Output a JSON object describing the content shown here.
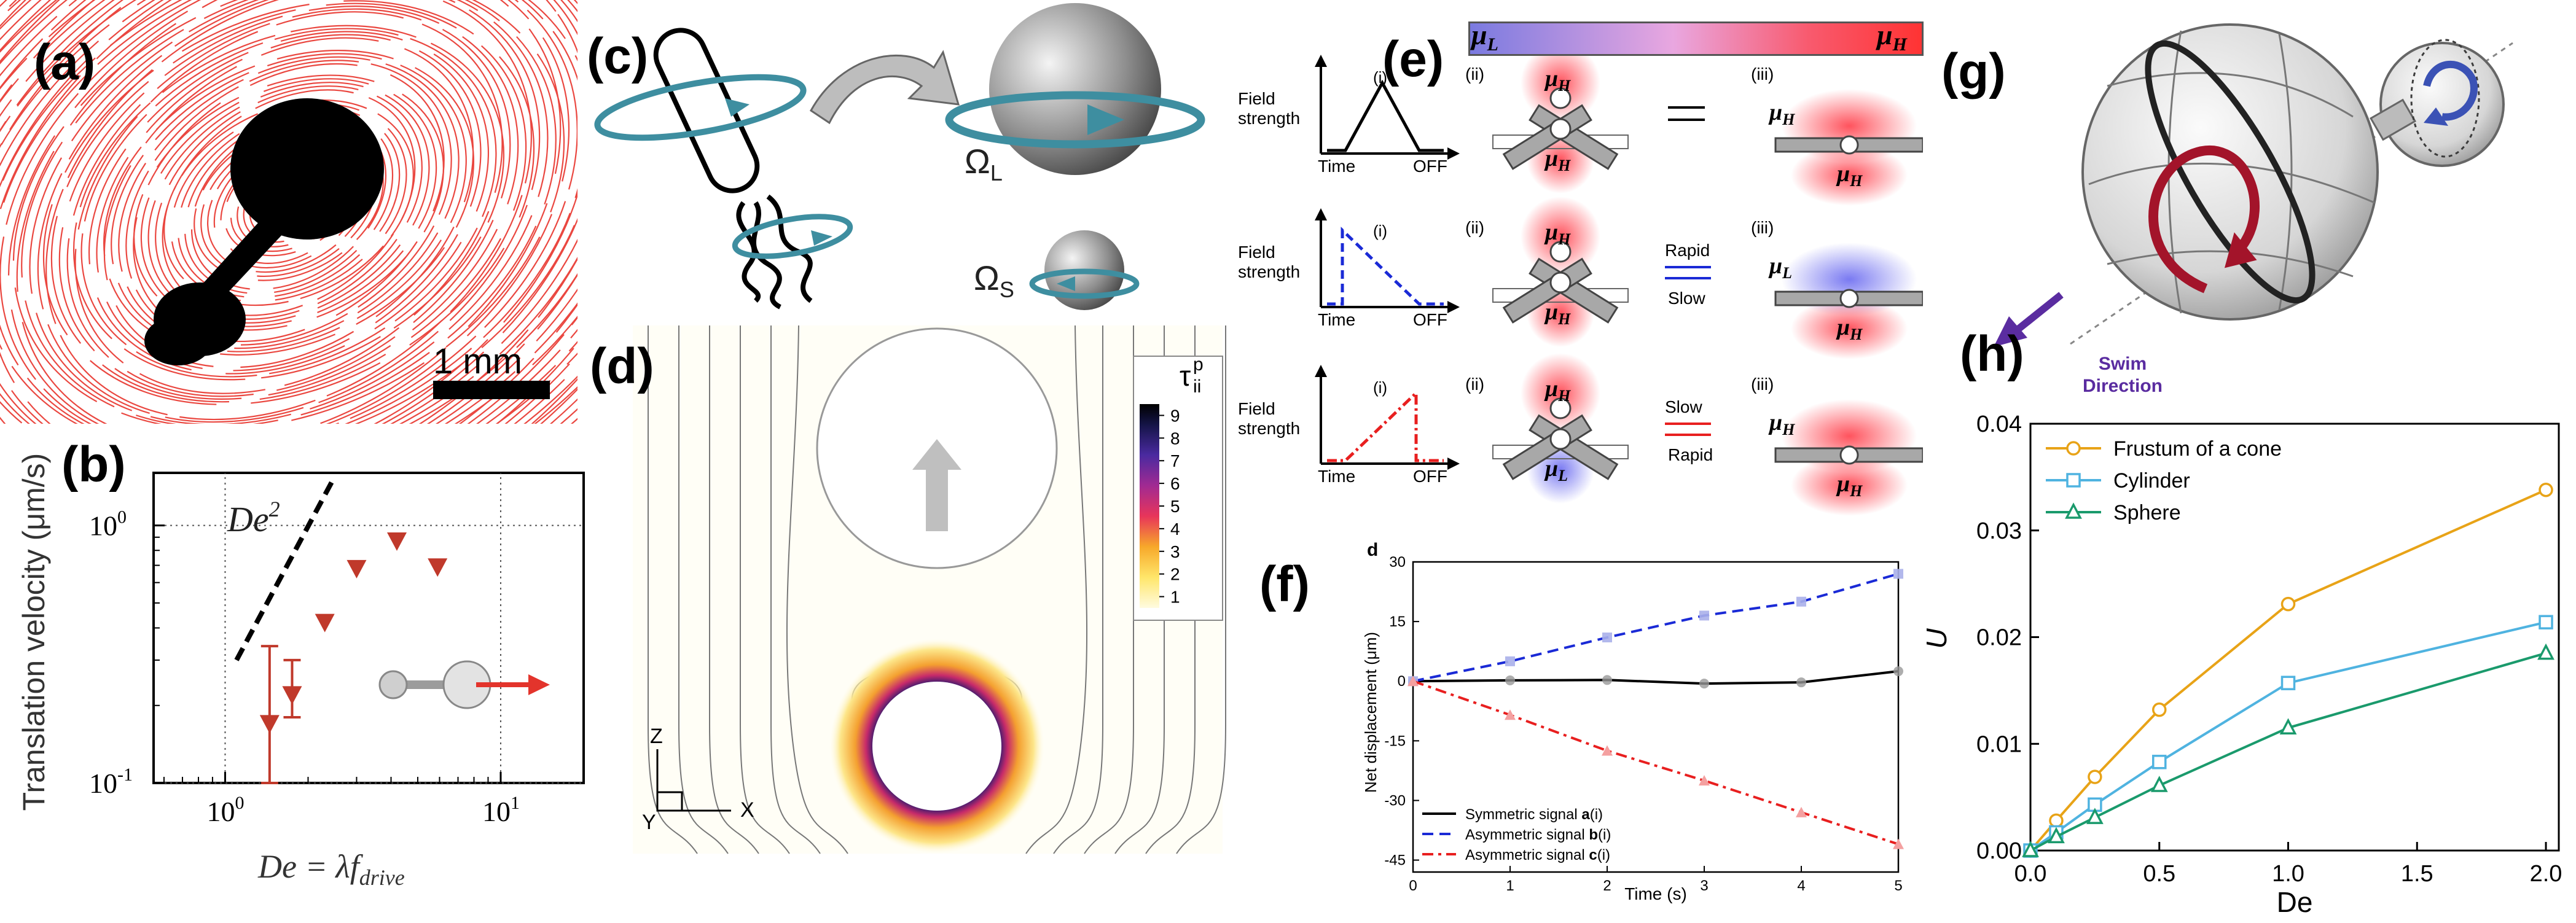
{
  "figure": {
    "panel_labels": [
      "(a)",
      "(b)",
      "(c)",
      "(d)",
      "(e)",
      "(f)",
      "(g)",
      "(h)"
    ]
  },
  "panel_a": {
    "scalebar_label": "1 mm",
    "colors": {
      "streak": "#e8342c",
      "body": "#000000"
    }
  },
  "panel_b": {
    "ylabel": "Translation velocity (μm/s)",
    "xlabel": "De = λ f_drive",
    "xlabel_parts": {
      "main": "De = λf",
      "sub": "drive"
    },
    "slope_label": "De²",
    "xtick_labels": [
      {
        "base": "10",
        "exp": "0"
      },
      {
        "base": "10",
        "exp": "1"
      }
    ],
    "ytick_labels": [
      {
        "base": "10",
        "exp": "-1"
      },
      {
        "base": "10",
        "exp": "0"
      }
    ],
    "chart_data": {
      "type": "scatter",
      "xlabel": "De = λ f_drive",
      "ylabel": "Translation velocity (μm/s)",
      "xscale": "log",
      "yscale": "log",
      "xlim": [
        0.55,
        20
      ],
      "ylim": [
        0.1,
        1.6
      ],
      "points": [
        {
          "x": 1.45,
          "y": 0.17,
          "yerr_low": 0.07,
          "yerr_high": 0.17
        },
        {
          "x": 1.75,
          "y": 0.22,
          "yerr_low": 0.04,
          "yerr_high": 0.08
        },
        {
          "x": 2.3,
          "y": 0.42
        },
        {
          "x": 3.0,
          "y": 0.68
        },
        {
          "x": 4.2,
          "y": 0.87
        },
        {
          "x": 5.9,
          "y": 0.69
        }
      ],
      "reference_line": {
        "label": "De²",
        "x": [
          1.1,
          2.5
        ],
        "y": [
          0.3,
          1.55
        ]
      },
      "marker_color": "#c0392b"
    }
  },
  "panel_c": {
    "omega_L": {
      "sym": "Ω",
      "sub": "L"
    },
    "omega_S": {
      "sym": "Ω",
      "sub": "S"
    },
    "colors": {
      "ring": "#3e8ea0",
      "sphere": "#8a8a8a"
    }
  },
  "panel_d": {
    "colorbar_label": {
      "main": "τ",
      "sup": "p",
      "sub": "ii"
    },
    "colorbar_ticks": [
      "9",
      "8",
      "7",
      "6",
      "5",
      "4",
      "3",
      "2",
      "1"
    ],
    "axis_labels": {
      "z": "Z",
      "x": "X",
      "y": "Y"
    }
  },
  "panel_e": {
    "gradient_left": {
      "main": "μ",
      "sub": "L"
    },
    "gradient_right": {
      "main": "μ",
      "sub": "H"
    },
    "rows": [
      {
        "ylabel_lines": [
          "Field",
          "strength"
        ],
        "x_time": "Time",
        "x_off": "OFF",
        "tags": [
          "(i)",
          "(ii)",
          "(iii)"
        ],
        "color": "#000000",
        "arrow_labels": [
          "",
          ""
        ]
      },
      {
        "ylabel_lines": [
          "Field",
          "strength"
        ],
        "x_time": "Time",
        "x_off": "OFF",
        "tags": [
          "(i)",
          "(ii)",
          "(iii)"
        ],
        "color": "#1a2ad6",
        "arrow_labels": [
          "Rapid",
          "Slow"
        ]
      },
      {
        "ylabel_lines": [
          "Field",
          "strength"
        ],
        "x_time": "Time",
        "x_off": "OFF",
        "tags": [
          "(i)",
          "(ii)",
          "(iii)"
        ],
        "color": "#e81f1f",
        "arrow_labels": [
          "Slow",
          "Rapid"
        ]
      }
    ],
    "mu_labels": {
      "H": {
        "main": "μ",
        "sub": "H"
      },
      "L": {
        "main": "μ",
        "sub": "L"
      }
    }
  },
  "panel_f": {
    "subpanel_tag": "d",
    "xlabel": "Time (s)",
    "ylabel": "Net displacement (μm)",
    "xtick_labels": [
      "0",
      "1",
      "2",
      "3",
      "4",
      "5"
    ],
    "ytick_labels": [
      "30",
      "15",
      "0",
      "-15",
      "-30",
      "-45"
    ],
    "legend": [
      {
        "text": "Symmetric signal ",
        "bold": "a",
        "tail": "(i)"
      },
      {
        "text": "Asymmetric signal ",
        "bold": "b",
        "tail": "(i)"
      },
      {
        "text": "Asymmetric signal ",
        "bold": "c",
        "tail": "(i)"
      }
    ],
    "chart_data": {
      "type": "line",
      "xlabel": "Time (s)",
      "ylabel": "Net displacement (μm)",
      "xlim": [
        0,
        5
      ],
      "ylim": [
        -48,
        30
      ],
      "x": [
        0,
        1,
        2,
        3,
        4,
        5
      ],
      "series": [
        {
          "name": "Symmetric signal a(i)",
          "values": [
            0,
            0.2,
            0.3,
            -0.6,
            -0.3,
            2.5
          ],
          "color": "#000000",
          "style": "solid"
        },
        {
          "name": "Asymmetric signal b(i)",
          "values": [
            0,
            5,
            11,
            16.5,
            20,
            27
          ],
          "color": "#1a2ad6",
          "style": "dashed"
        },
        {
          "name": "Asymmetric signal c(i)",
          "values": [
            0,
            -8.5,
            -17.5,
            -25,
            -33,
            -41
          ],
          "color": "#e81f1f",
          "style": "dashdot"
        }
      ]
    }
  },
  "panel_g": {
    "swim_direction_lines": [
      "Swim",
      "Direction"
    ],
    "colors": {
      "swim": "#5a2ca0",
      "big_arrow": "#a3142a",
      "small_arrow": "#3b52b5"
    }
  },
  "panel_h": {
    "xlabel": "De",
    "ylabel": "U",
    "xtick_labels": [
      "0.0",
      "0.5",
      "1.0",
      "1.5",
      "2.0"
    ],
    "ytick_labels": [
      "0.00",
      "0.01",
      "0.02",
      "0.03",
      "0.04"
    ],
    "legend": [
      "Frustum of a cone",
      "Cylinder",
      "Sphere"
    ],
    "chart_data": {
      "type": "line",
      "xlabel": "De",
      "ylabel": "U",
      "xlim": [
        0,
        2.05
      ],
      "ylim": [
        0,
        0.04
      ],
      "x": [
        0,
        0.1,
        0.25,
        0.5,
        1.0,
        2.0
      ],
      "series": [
        {
          "name": "Frustum of a cone",
          "values": [
            0,
            0.0028,
            0.0069,
            0.0132,
            0.0231,
            0.0338
          ],
          "color": "#e8a317",
          "marker": "circle"
        },
        {
          "name": "Cylinder",
          "values": [
            0,
            0.0017,
            0.0043,
            0.0083,
            0.0157,
            0.0214
          ],
          "color": "#4fb3e0",
          "marker": "square"
        },
        {
          "name": "Sphere",
          "values": [
            0,
            0.0013,
            0.0031,
            0.0061,
            0.0115,
            0.0185
          ],
          "color": "#1a9a6c",
          "marker": "triangle"
        }
      ]
    }
  }
}
